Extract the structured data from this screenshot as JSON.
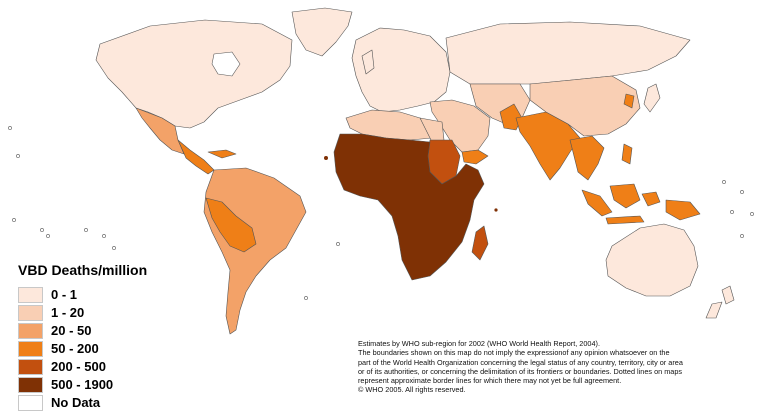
{
  "legend": {
    "title": "VBD Deaths/million",
    "items": [
      {
        "label": "0 - 1",
        "color": "#fde8dc"
      },
      {
        "label": "1 - 20",
        "color": "#f9cfb4"
      },
      {
        "label": "20 - 50",
        "color": "#f3a268"
      },
      {
        "label": "50 - 200",
        "color": "#ef7f17"
      },
      {
        "label": "200 - 500",
        "color": "#c2500f"
      },
      {
        "label": "500 - 1900",
        "color": "#7f3105"
      },
      {
        "label": "No Data",
        "color": "#ffffff"
      }
    ]
  },
  "note": {
    "lines": [
      "Estimates by WHO sub-region for 2002 (WHO World Health Report, 2004).",
      "The boundaries shown on this map do not imply the expressionof any opinion whatsoever on the",
      "  part of the World Health Organization concerning the legal status of any country, territory, city or area",
      "or of its authorities, or concerning the delimitation of its frontiers or boundaries.  Dotted lines on maps",
      "represent approximate border lines for which there may not yet be full agreement.",
      "© WHO 2005. All rights reserved."
    ]
  },
  "map": {
    "region_colors": {
      "north_america": "#fde8dc",
      "greenland": "#fde8dc",
      "mexico": "#f3a268",
      "central_america": "#ef7f17",
      "caribbean": "#ef7f17",
      "south_america": "#f3a268",
      "bolivia_peru": "#ef7f17",
      "europe": "#fde8dc",
      "russia_north_asia": "#fde8dc",
      "north_africa": "#f9cfb4",
      "egypt": "#f9cfb4",
      "sudan": "#c2500f",
      "sub_saharan_africa": "#7f3105",
      "madagascar": "#c2500f",
      "middle_east": "#f9cfb4",
      "iran_afghanistan": "#f9cfb4",
      "yemen": "#ef7f17",
      "south_asia": "#ef7f17",
      "china": "#f9cfb4",
      "korea": "#ef7f17",
      "southeast_asia": "#ef7f17",
      "indonesia": "#ef7f17",
      "australia": "#fde8dc",
      "new_zealand": "#fde8dc"
    }
  }
}
